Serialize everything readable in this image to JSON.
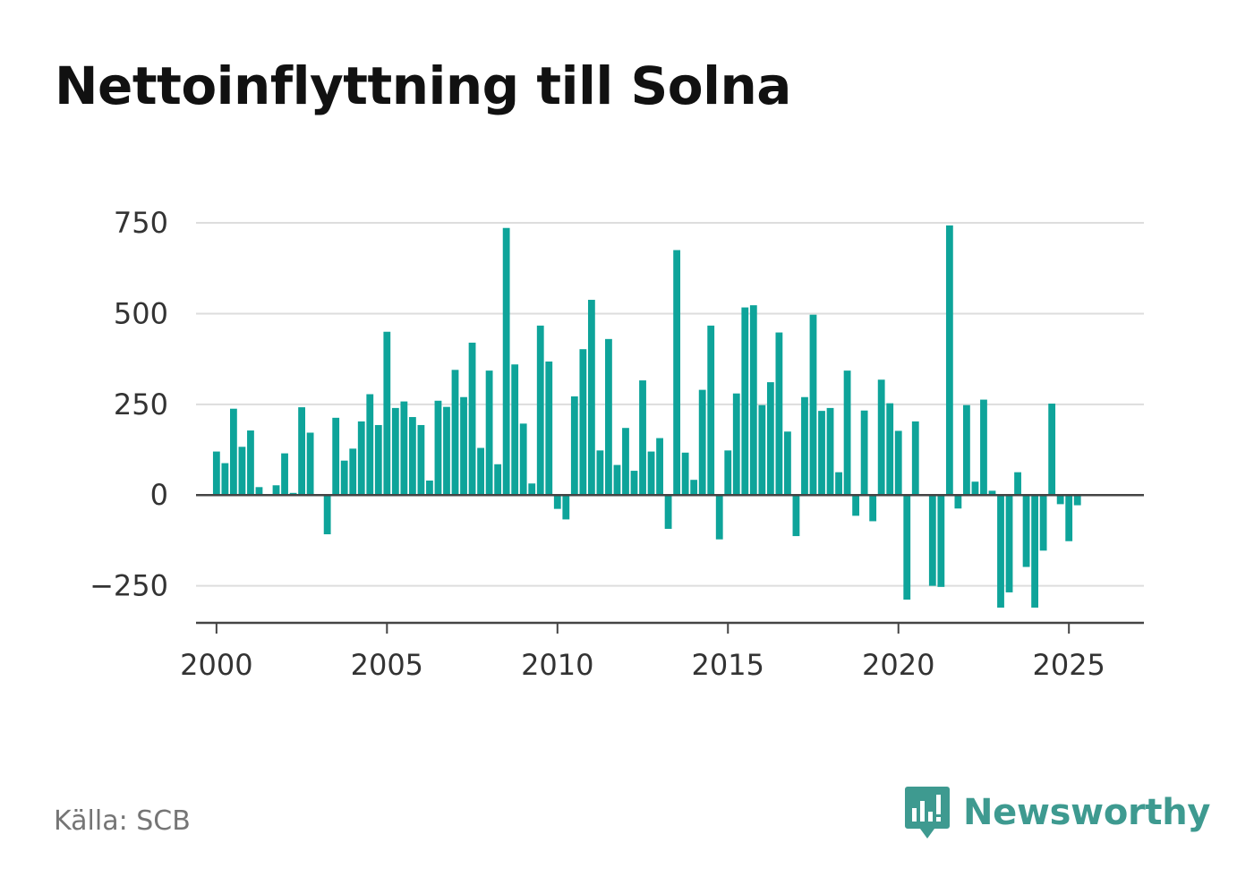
{
  "chart_data": {
    "type": "bar",
    "title": "Nettoinflyttning till Solna",
    "x_start_year": 2000,
    "x_step_months": 3,
    "values": [
      120,
      88,
      238,
      133,
      178,
      22,
      0,
      27,
      115,
      6,
      242,
      172,
      0,
      -108,
      213,
      95,
      128,
      203,
      278,
      193,
      450,
      240,
      258,
      215,
      193,
      40,
      260,
      243,
      345,
      270,
      420,
      130,
      343,
      85,
      736,
      360,
      197,
      32,
      467,
      368,
      -38,
      -67,
      272,
      402,
      538,
      123,
      430,
      83,
      185,
      67,
      316,
      120,
      157,
      -93,
      675,
      117,
      42,
      290,
      467,
      -122,
      123,
      280,
      517,
      523,
      248,
      311,
      448,
      175,
      -113,
      270,
      497,
      232,
      240,
      63,
      343,
      -57,
      233,
      -72,
      318,
      253,
      177,
      -288,
      203,
      0,
      -250,
      -253,
      743,
      -37,
      248,
      37,
      263,
      12,
      -310,
      -268,
      63,
      -198,
      -310,
      -153,
      252,
      -25,
      -127,
      -28
    ],
    "x_ticks": [
      "2000",
      "2005",
      "2010",
      "2015",
      "2020",
      "2025"
    ],
    "y_ticks": [
      -250,
      0,
      250,
      500,
      750
    ],
    "y_tick_labels": [
      "−250",
      "0",
      "250",
      "500",
      "750"
    ],
    "ylim": [
      -352,
      760
    ],
    "xlim": [
      1999.4,
      2027.2
    ],
    "grid": true,
    "legend": "none",
    "bar_color": "#0ea49a"
  },
  "source": "Källa: SCB",
  "brand": {
    "name": "Newsworthy",
    "color": "#3e9a90",
    "icon": "bar-chart-speech-bubble-icon"
  }
}
